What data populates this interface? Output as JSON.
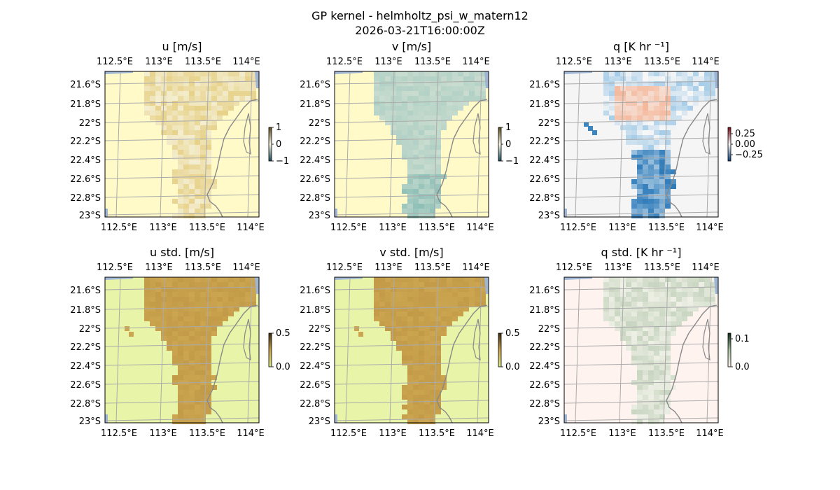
{
  "figure": {
    "title": "GP kernel - helmholtz_psi_w_matern12",
    "subtitle": "2026-03-21T16:00:00Z"
  },
  "chart_data": [
    {
      "type": "heatmap",
      "id": "u",
      "title": "u [m/s]",
      "lon_ticks": [
        "112.5°E",
        "113°E",
        "113.5°E",
        "114°E"
      ],
      "lat_ticks": [
        "21.6°S",
        "21.8°S",
        "22°S",
        "22.2°S",
        "22.4°S",
        "22.6°S",
        "22.8°S",
        "23°S"
      ],
      "colorbar": {
        "ticks": [
          "1",
          "0",
          "−1"
        ],
        "range": [
          -1,
          1
        ],
        "colors": [
          "#1a4a5a",
          "#f8f5e4",
          "#5b4a1b"
        ]
      },
      "fill_color": "#fffac8",
      "data_color": "#e7d28a",
      "value_note": "values near 0 to 0.3"
    },
    {
      "type": "heatmap",
      "id": "v",
      "title": "v [m/s]",
      "lon_ticks": [
        "112.5°E",
        "113°E",
        "113.5°E",
        "114°E"
      ],
      "lat_ticks": [
        "21.6°S",
        "21.8°S",
        "22°S",
        "22.2°S",
        "22.4°S",
        "22.6°S",
        "22.8°S",
        "23°S"
      ],
      "colorbar": {
        "ticks": [
          "1",
          "0",
          "−1"
        ],
        "range": [
          -1,
          1
        ],
        "colors": [
          "#1a4a5a",
          "#f8f5e4",
          "#5b4a1b"
        ]
      },
      "fill_color": "#fffac8",
      "data_color": "#c9dccf",
      "data_color_strong": "#8fc0b8"
    },
    {
      "type": "heatmap",
      "id": "q",
      "title": "q [K hr ⁻¹]",
      "lon_ticks": [
        "112.5°E",
        "113°E",
        "113.5°E",
        "114°E"
      ],
      "lat_ticks": [
        "21.6°S",
        "21.8°S",
        "22°S",
        "22.2°S",
        "22.4°S",
        "22.6°S",
        "22.8°S",
        "23°S"
      ],
      "colorbar": {
        "ticks": [
          "0.25",
          "0.00",
          "−0.25"
        ],
        "range": [
          -0.4,
          0.4
        ],
        "colors": [
          "#0b3f7a",
          "#f7f7f7",
          "#7a0b1a"
        ]
      },
      "fill_color": "#f5f5f5",
      "data_color": "#cfe3f0",
      "pos_color": "#f4b79a",
      "neg_color": "#2a78b8"
    },
    {
      "type": "heatmap",
      "id": "u_std",
      "title": "u std. [m/s]",
      "lon_ticks": [
        "112.5°E",
        "113°E",
        "113.5°E",
        "114°E"
      ],
      "lat_ticks": [
        "21.6°S",
        "21.8°S",
        "22°S",
        "22.2°S",
        "22.4°S",
        "22.6°S",
        "22.8°S",
        "23°S"
      ],
      "colorbar": {
        "ticks": [
          "0.5",
          "0.0"
        ],
        "range": [
          0,
          0.5
        ],
        "colors": [
          "#d9e888",
          "#c9a24e",
          "#3a2a10"
        ]
      },
      "fill_color": "#e8f5a8",
      "data_color": "#cca550"
    },
    {
      "type": "heatmap",
      "id": "v_std",
      "title": "v std. [m/s]",
      "lon_ticks": [
        "112.5°E",
        "113°E",
        "113.5°E",
        "114°E"
      ],
      "lat_ticks": [
        "21.6°S",
        "21.8°S",
        "22°S",
        "22.2°S",
        "22.4°S",
        "22.6°S",
        "22.8°S",
        "23°S"
      ],
      "colorbar": {
        "ticks": [
          "0.5",
          "0.0"
        ],
        "range": [
          0,
          0.5
        ],
        "colors": [
          "#d9e888",
          "#c9a24e",
          "#3a2a10"
        ]
      },
      "fill_color": "#e8f5a8",
      "data_color": "#cca550"
    },
    {
      "type": "heatmap",
      "id": "q_std",
      "title": "q std. [K hr ⁻¹]",
      "lon_ticks": [
        "112.5°E",
        "113°E",
        "113.5°E",
        "114°E"
      ],
      "lat_ticks": [
        "21.6°S",
        "21.8°S",
        "22°S",
        "22.2°S",
        "22.4°S",
        "22.6°S",
        "22.8°S",
        "23°S"
      ],
      "colorbar": {
        "ticks": [
          "0.1",
          "0.0"
        ],
        "range": [
          0,
          0.12
        ],
        "colors": [
          "#fff1ee",
          "#a9c3a3",
          "#0f2a1a"
        ]
      },
      "fill_color": "#fff3f0",
      "data_color": "#e2e7d8"
    }
  ]
}
